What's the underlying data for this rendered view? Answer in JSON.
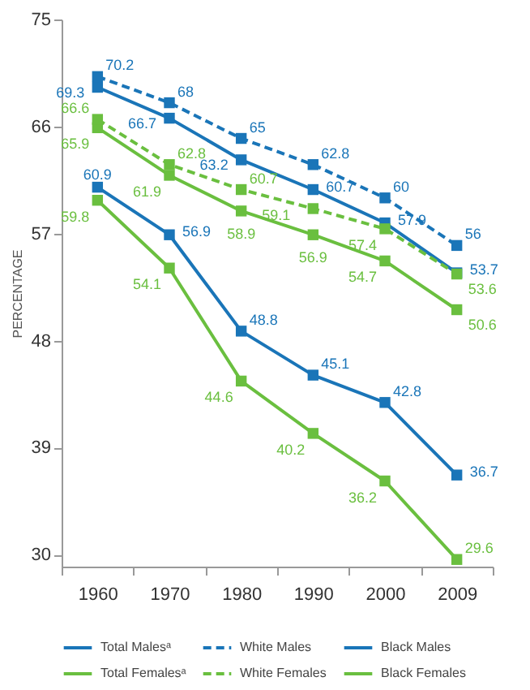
{
  "chart_data": {
    "type": "line",
    "ylabel": "PERCENTAGE",
    "categories": [
      "1960",
      "1970",
      "1980",
      "1990",
      "2000",
      "2009"
    ],
    "series": [
      {
        "name": "Total Malesᵃ",
        "color": "#1a75b8",
        "line_style": "solid",
        "values": [
          69.3,
          66.7,
          63.2,
          60.7,
          57.9,
          53.7
        ]
      },
      {
        "name": "White Males",
        "color": "#1a75b8",
        "line_style": "dashed",
        "values": [
          70.2,
          68,
          65,
          62.8,
          60,
          56
        ]
      },
      {
        "name": "Black Males",
        "color": "#1a75b8",
        "line_style": "solid",
        "values": [
          60.9,
          56.9,
          48.8,
          45.1,
          42.8,
          36.7
        ]
      },
      {
        "name": "Total Femalesᵃ",
        "color": "#6abf3f",
        "line_style": "solid",
        "values": [
          65.9,
          61.9,
          58.9,
          56.9,
          54.7,
          50.6
        ]
      },
      {
        "name": "White Females",
        "color": "#6abf3f",
        "line_style": "dashed",
        "values": [
          66.6,
          62.8,
          60.7,
          59.1,
          57.4,
          53.6
        ]
      },
      {
        "name": "Black Females",
        "color": "#6abf3f",
        "line_style": "solid",
        "values": [
          59.8,
          54.1,
          44.6,
          40.2,
          36.2,
          29.6
        ]
      }
    ],
    "ylim": [
      29,
      75
    ],
    "yticks": [
      30,
      39,
      48,
      57,
      66,
      75
    ],
    "grid": false,
    "legend": "bottom",
    "marker": "square",
    "data_labels": true
  }
}
